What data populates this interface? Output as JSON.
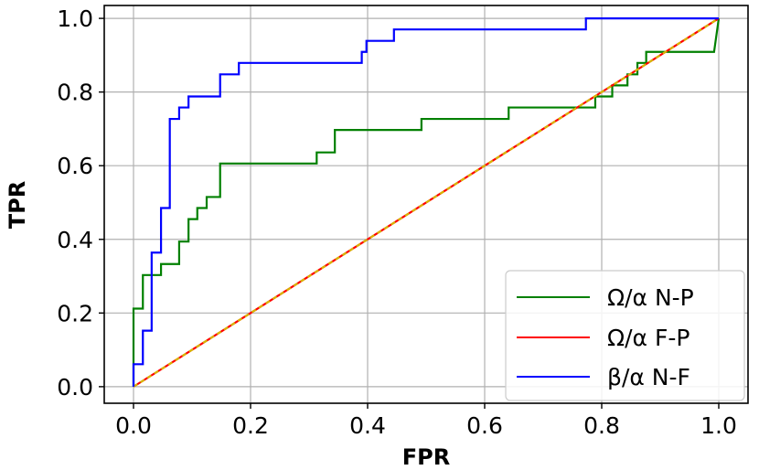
{
  "chart_data": {
    "type": "line",
    "title": "",
    "xlabel": "FPR",
    "ylabel": "TPR",
    "xlim": [
      -0.05,
      1.05
    ],
    "ylim": [
      -0.045,
      1.035
    ],
    "xticks": [
      "0.0",
      "0.2",
      "0.4",
      "0.6",
      "0.8",
      "1.0"
    ],
    "yticks": [
      "0.0",
      "0.2",
      "0.4",
      "0.6",
      "0.8",
      "1.0"
    ],
    "grid": true,
    "legend_position": "lower right",
    "series": [
      {
        "name": "Ω/α N-P",
        "color": "#008000",
        "style": "solid",
        "x": [
          0,
          0,
          0.016,
          0.016,
          0.047,
          0.047,
          0.047,
          0.047,
          0.078,
          0.078,
          0.094,
          0.094,
          0.109,
          0.109,
          0.125,
          0.125,
          0.148,
          0.148,
          0.313,
          0.313,
          0.344,
          0.344,
          0.492,
          0.492,
          0.641,
          0.641,
          0.789,
          0.789,
          0.818,
          0.818,
          0.844,
          0.844,
          0.861,
          0.861,
          0.876,
          0.876,
          0.992,
          0.992,
          1.0
        ],
        "y": [
          0,
          0.212,
          0.212,
          0.303,
          0.303,
          0.333,
          0.333,
          0.333,
          0.333,
          0.394,
          0.394,
          0.455,
          0.455,
          0.485,
          0.485,
          0.515,
          0.515,
          0.606,
          0.606,
          0.636,
          0.636,
          0.697,
          0.697,
          0.727,
          0.727,
          0.758,
          0.758,
          0.788,
          0.788,
          0.818,
          0.818,
          0.848,
          0.848,
          0.879,
          0.879,
          0.909,
          0.909,
          0.909,
          1.0
        ]
      },
      {
        "name": "Ω/α F-P",
        "color": "#ff0000",
        "style": "solid",
        "x": [
          0,
          1
        ],
        "y": [
          0,
          1
        ]
      },
      {
        "name": "",
        "color": "#d7b500",
        "style": "dashed",
        "x": [
          0,
          1
        ],
        "y": [
          0,
          1
        ]
      },
      {
        "name": "β/α N-F",
        "color": "#0000ff",
        "style": "solid",
        "x": [
          0,
          0,
          0.016,
          0.016,
          0.031,
          0.031,
          0.047,
          0.047,
          0.062,
          0.062,
          0.078,
          0.078,
          0.094,
          0.094,
          0.094,
          0.148,
          0.148,
          0.18,
          0.18,
          0.39,
          0.39,
          0.398,
          0.398,
          0.445,
          0.445,
          0.773,
          0.773,
          0.785,
          0.785,
          1.0
        ],
        "y": [
          0,
          0.061,
          0.061,
          0.152,
          0.152,
          0.364,
          0.364,
          0.485,
          0.485,
          0.727,
          0.727,
          0.758,
          0.758,
          0.788,
          0.788,
          0.788,
          0.848,
          0.848,
          0.879,
          0.879,
          0.909,
          0.909,
          0.939,
          0.939,
          0.97,
          0.97,
          1.0,
          1.0,
          1.0,
          1.0
        ]
      }
    ],
    "legend": [
      "Ω/α N-P",
      "Ω/α F-P",
      "β/α N-F"
    ]
  }
}
